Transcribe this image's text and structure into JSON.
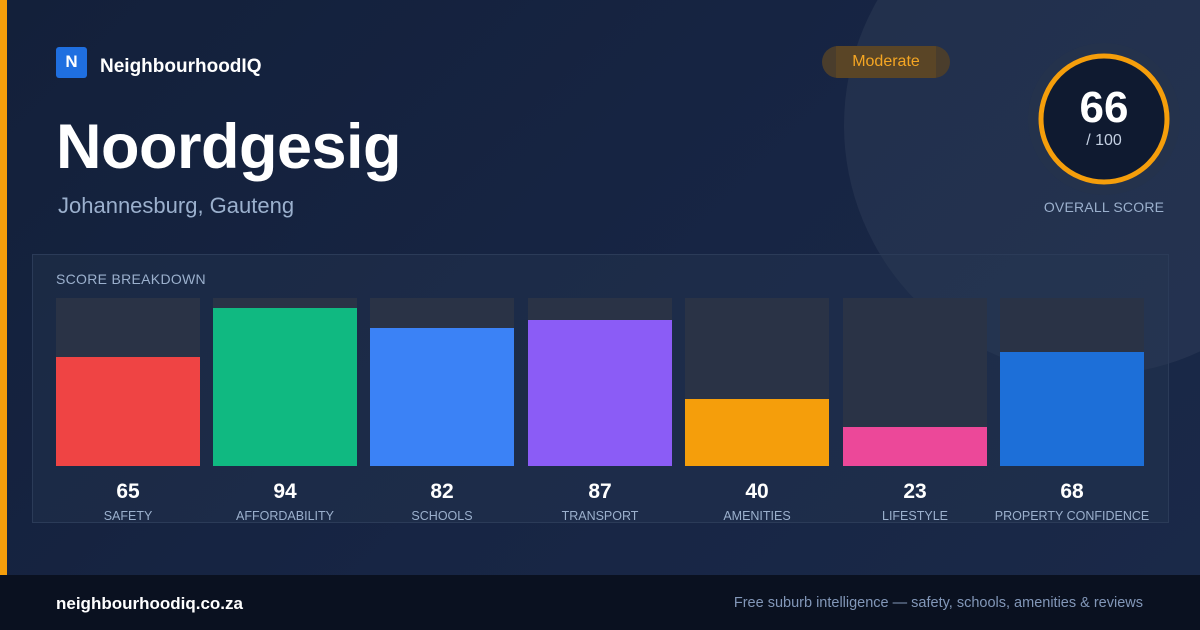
{
  "brand": {
    "logo_letter": "N",
    "name": "NeighbourhoodIQ"
  },
  "suburb": {
    "name": "Noordgesig",
    "location": "Johannesburg, Gauteng"
  },
  "badge": {
    "label": "Moderate"
  },
  "overall": {
    "score": "66",
    "max": "/ 100",
    "caption": "OVERALL SCORE",
    "fraction": 0.66
  },
  "breakdown": {
    "title": "SCORE BREAKDOWN",
    "items": [
      {
        "label": "SAFETY",
        "value": 65,
        "display": "65",
        "color": "#ef4444"
      },
      {
        "label": "AFFORDABILITY",
        "value": 94,
        "display": "94",
        "color": "#10b981"
      },
      {
        "label": "SCHOOLS",
        "value": 82,
        "display": "82",
        "color": "#3b82f6"
      },
      {
        "label": "TRANSPORT",
        "value": 87,
        "display": "87",
        "color": "#8b5cf6"
      },
      {
        "label": "AMENITIES",
        "value": 40,
        "display": "40",
        "color": "#f59e0b"
      },
      {
        "label": "LIFESTYLE",
        "value": 23,
        "display": "23",
        "color": "#ec4899"
      },
      {
        "label": "PROPERTY CONFIDENCE",
        "value": 68,
        "display": "68",
        "color": "#1d6fd8"
      }
    ]
  },
  "colors": {
    "accent": "#f59e0b",
    "ring": "#f59e0b",
    "brand_blue": "#1f6fe0"
  },
  "footer": {
    "domain": "neighbourhoodiq.co.za",
    "tagline": "Free suburb intelligence — safety, schools, amenities & reviews"
  }
}
